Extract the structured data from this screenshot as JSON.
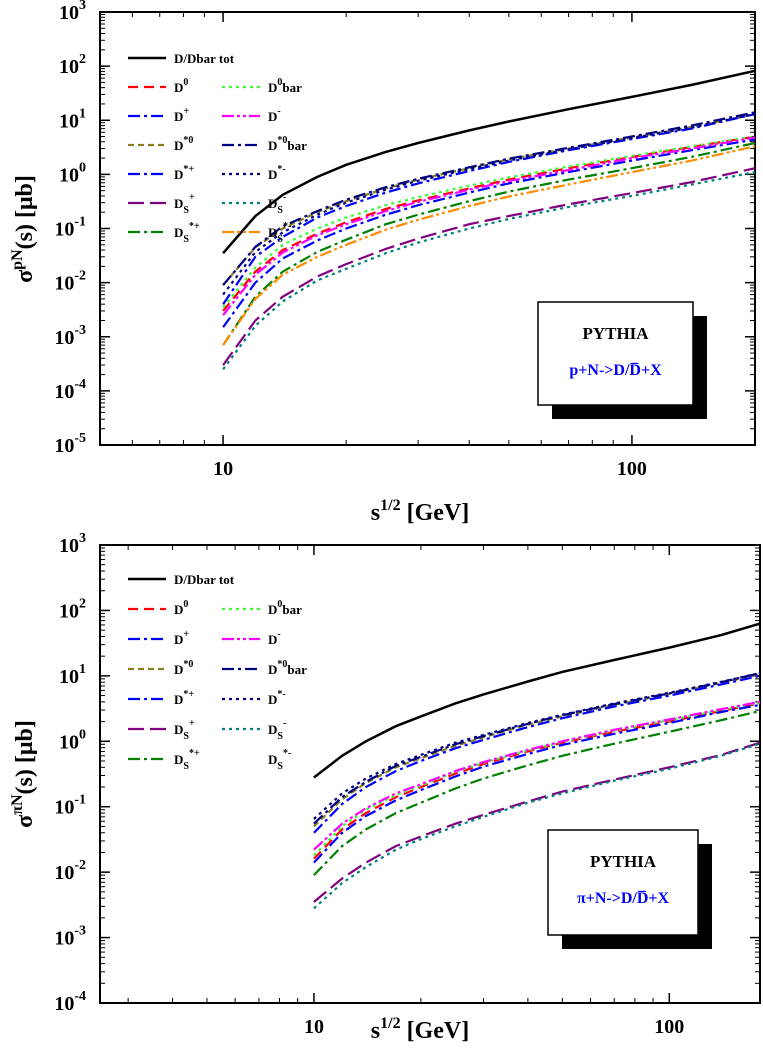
{
  "colors": {
    "black": "#000000",
    "red": "#ff0000",
    "green": "#33ff33",
    "blue": "#0000ff",
    "magenta": "#ff00ff",
    "olive": "#8b7d22",
    "navy": "#000080",
    "purple": "#800080",
    "teal": "#008080",
    "darkgreen": "#008000",
    "orange": "#ff8c00"
  },
  "chart_data": [
    {
      "type": "line",
      "title": "",
      "xlabel_base": "s",
      "xlabel_sup": "1/2",
      "xlabel_unit": " [GeV]",
      "ylabel_base": "σ",
      "ylabel_sup": "pN",
      "ylabel_unit": "(s) [μb]",
      "xscale": "log",
      "yscale": "log",
      "xlim": [
        5,
        200
      ],
      "ylim": [
        1e-05,
        1000
      ],
      "xticks": [
        {
          "v": 10,
          "t": "10"
        },
        {
          "v": 100,
          "t": "100"
        }
      ],
      "yticks": [
        {
          "v": 1e-05,
          "b": "10",
          "e": "-5"
        },
        {
          "v": 0.0001,
          "b": "10",
          "e": "-4"
        },
        {
          "v": 0.001,
          "b": "10",
          "e": "-3"
        },
        {
          "v": 0.01,
          "b": "10",
          "e": "-2"
        },
        {
          "v": 0.1,
          "b": "10",
          "e": "-1"
        },
        {
          "v": 1,
          "b": "10",
          "e": "0"
        },
        {
          "v": 10,
          "b": "10",
          "e": "1"
        },
        {
          "v": 100,
          "b": "10",
          "e": "2"
        },
        {
          "v": 1000,
          "b": "10",
          "e": "3"
        }
      ],
      "annotation": {
        "title": "PYTHIA",
        "process": "p+N->D/D̅+X"
      },
      "legend": [
        [
          {
            "name": "D/Dbar tot",
            "sub": "",
            "sup": "",
            "suffix": "",
            "key": "tot"
          }
        ],
        [
          {
            "name": "D",
            "sub": "",
            "sup": "0",
            "suffix": "",
            "key": "D0"
          },
          {
            "name": "D",
            "sub": "",
            "sup": "0",
            "suffix": "bar",
            "key": "D0bar"
          }
        ],
        [
          {
            "name": "D",
            "sub": "",
            "sup": "+",
            "suffix": "",
            "key": "Dp"
          },
          {
            "name": "D",
            "sub": "",
            "sup": "-",
            "suffix": "",
            "key": "Dm"
          }
        ],
        [
          {
            "name": "D",
            "sub": "",
            "sup": "*0",
            "suffix": "",
            "key": "Ds0"
          },
          {
            "name": "D",
            "sub": "",
            "sup": "*0",
            "suffix": "bar",
            "key": "Ds0bar"
          }
        ],
        [
          {
            "name": "D",
            "sub": "",
            "sup": "*+",
            "suffix": "",
            "key": "Dsp"
          },
          {
            "name": "D",
            "sub": "",
            "sup": "*-",
            "suffix": "",
            "key": "Dsm"
          }
        ],
        [
          {
            "name": "D",
            "sub": "S",
            "sup": "+",
            "suffix": "",
            "key": "DSp"
          },
          {
            "name": "D",
            "sub": "S",
            "sup": "-",
            "suffix": "",
            "key": "DSm"
          }
        ],
        [
          {
            "name": "D",
            "sub": "S",
            "sup": "*+",
            "suffix": "",
            "key": "DSsp"
          },
          {
            "name": "D",
            "sub": "S",
            "sup": "*-",
            "suffix": "",
            "key": "DSsm"
          }
        ]
      ],
      "x": [
        10,
        12,
        14,
        17,
        20,
        25,
        30,
        40,
        50,
        70,
        100,
        140,
        200
      ],
      "series": [
        {
          "key": "tot",
          "name": "D/Dbar tot",
          "color": "#000000",
          "dash": "solid",
          "values": [
            0.035,
            0.17,
            0.42,
            0.9,
            1.5,
            2.6,
            3.8,
            6.5,
            9.5,
            16,
            27,
            45,
            82
          ]
        },
        {
          "key": "D0",
          "name": "D0",
          "color": "#ff0000",
          "dash": "dash",
          "values": [
            0.003,
            0.016,
            0.04,
            0.08,
            0.13,
            0.23,
            0.33,
            0.55,
            0.8,
            1.3,
            2.1,
            3.2,
            5.0
          ]
        },
        {
          "key": "D0bar",
          "name": "D0bar",
          "color": "#33ff33",
          "dash": "dot",
          "values": [
            0.0035,
            0.019,
            0.05,
            0.1,
            0.16,
            0.27,
            0.38,
            0.62,
            0.88,
            1.4,
            2.2,
            3.3,
            5.0
          ]
        },
        {
          "key": "Dp",
          "name": "D+",
          "color": "#0000ff",
          "dash": "dashdot",
          "values": [
            0.0015,
            0.01,
            0.028,
            0.06,
            0.1,
            0.18,
            0.27,
            0.46,
            0.68,
            1.1,
            1.8,
            2.8,
            4.4
          ]
        },
        {
          "key": "Dm",
          "name": "D-",
          "color": "#ff00ff",
          "dash": "dashdotdot",
          "values": [
            0.0025,
            0.014,
            0.036,
            0.075,
            0.12,
            0.21,
            0.31,
            0.52,
            0.75,
            1.2,
            2.0,
            3.0,
            4.8
          ]
        },
        {
          "key": "Ds0",
          "name": "D*0",
          "color": "#8b7d22",
          "dash": "shortdash",
          "values": [
            0.009,
            0.045,
            0.1,
            0.2,
            0.32,
            0.55,
            0.8,
            1.3,
            1.9,
            3.0,
            4.8,
            7.5,
            13
          ]
        },
        {
          "key": "Ds0bar",
          "name": "D*0bar",
          "color": "#000080",
          "dash": "dashdot",
          "values": [
            0.009,
            0.046,
            0.11,
            0.21,
            0.34,
            0.58,
            0.83,
            1.35,
            1.95,
            3.1,
            5.0,
            8.0,
            14
          ]
        },
        {
          "key": "Dsp",
          "name": "D*+",
          "color": "#0000ff",
          "dash": "dashdot",
          "values": [
            0.004,
            0.03,
            0.07,
            0.16,
            0.26,
            0.46,
            0.68,
            1.15,
            1.7,
            2.8,
            4.5,
            7.0,
            13
          ]
        },
        {
          "key": "Dsm",
          "name": "D*-",
          "color": "#000080",
          "dash": "dot",
          "values": [
            0.006,
            0.037,
            0.085,
            0.18,
            0.3,
            0.52,
            0.76,
            1.25,
            1.8,
            2.9,
            4.7,
            7.3,
            13
          ]
        },
        {
          "key": "DSp",
          "name": "DS+",
          "color": "#800080",
          "dash": "longdash",
          "values": [
            0.0003,
            0.002,
            0.0055,
            0.013,
            0.022,
            0.042,
            0.065,
            0.12,
            0.17,
            0.28,
            0.45,
            0.72,
            1.3
          ]
        },
        {
          "key": "DSm",
          "name": "DS-",
          "color": "#008080",
          "dash": "dot",
          "values": [
            0.00025,
            0.0016,
            0.0045,
            0.011,
            0.018,
            0.035,
            0.055,
            0.1,
            0.15,
            0.25,
            0.4,
            0.65,
            1.1
          ]
        },
        {
          "key": "DSsp",
          "name": "DS*+",
          "color": "#008000",
          "dash": "dashdot",
          "values": [
            0.0007,
            0.0055,
            0.016,
            0.037,
            0.062,
            0.12,
            0.18,
            0.32,
            0.48,
            0.8,
            1.3,
            2.1,
            3.8
          ]
        },
        {
          "key": "DSsm",
          "name": "DS*-",
          "color": "#ff8c00",
          "dash": "dashdotdot",
          "values": [
            0.0007,
            0.005,
            0.014,
            0.03,
            0.05,
            0.095,
            0.145,
            0.26,
            0.39,
            0.65,
            1.1,
            1.8,
            3.3
          ]
        }
      ]
    },
    {
      "type": "line",
      "title": "",
      "xlabel_base": "s",
      "xlabel_sup": "1/2",
      "xlabel_unit": " [GeV]",
      "ylabel_base": "σ",
      "ylabel_sup": "πN",
      "ylabel_unit": "(s) [μb]",
      "xscale": "log",
      "yscale": "log",
      "xlim": [
        2.5,
        180
      ],
      "ylim": [
        0.0001,
        1000
      ],
      "xticks": [
        {
          "v": 10,
          "t": "10"
        },
        {
          "v": 100,
          "t": "100"
        }
      ],
      "yticks": [
        {
          "v": 0.0001,
          "b": "10",
          "e": "-4"
        },
        {
          "v": 0.001,
          "b": "10",
          "e": "-3"
        },
        {
          "v": 0.01,
          "b": "10",
          "e": "-2"
        },
        {
          "v": 0.1,
          "b": "10",
          "e": "-1"
        },
        {
          "v": 1,
          "b": "10",
          "e": "0"
        },
        {
          "v": 10,
          "b": "10",
          "e": "1"
        },
        {
          "v": 100,
          "b": "10",
          "e": "2"
        },
        {
          "v": 1000,
          "b": "10",
          "e": "3"
        }
      ],
      "annotation": {
        "title": "PYTHIA",
        "process": "π+N->D/D̅+X"
      },
      "legend": [
        [
          {
            "name": "D/Dbar tot",
            "sub": "",
            "sup": "",
            "suffix": "",
            "key": "tot"
          }
        ],
        [
          {
            "name": "D",
            "sub": "",
            "sup": "0",
            "suffix": "",
            "key": "D0"
          },
          {
            "name": "D",
            "sub": "",
            "sup": "0",
            "suffix": "bar",
            "key": "D0bar"
          }
        ],
        [
          {
            "name": "D",
            "sub": "",
            "sup": "+",
            "suffix": "",
            "key": "Dp"
          },
          {
            "name": "D",
            "sub": "",
            "sup": "-",
            "suffix": "",
            "key": "Dm"
          }
        ],
        [
          {
            "name": "D",
            "sub": "",
            "sup": "*0",
            "suffix": "",
            "key": "Ds0"
          },
          {
            "name": "D",
            "sub": "",
            "sup": "*0",
            "suffix": "bar",
            "key": "Ds0bar"
          }
        ],
        [
          {
            "name": "D",
            "sub": "",
            "sup": "*+",
            "suffix": "",
            "key": "Dsp"
          },
          {
            "name": "D",
            "sub": "",
            "sup": "*-",
            "suffix": "",
            "key": "Dsm"
          }
        ],
        [
          {
            "name": "D",
            "sub": "S",
            "sup": "+",
            "suffix": "",
            "key": "DSp"
          },
          {
            "name": "D",
            "sub": "S",
            "sup": "-",
            "suffix": "",
            "key": "DSm"
          }
        ],
        [
          {
            "name": "D",
            "sub": "S",
            "sup": "*+",
            "suffix": "",
            "key": "DSsp"
          },
          {
            "name": "D",
            "sub": "S",
            "sup": "*-",
            "suffix": "",
            "key": "DSsm"
          }
        ]
      ],
      "x": [
        10,
        12,
        14,
        17,
        20,
        25,
        30,
        40,
        50,
        70,
        100,
        140,
        180
      ],
      "series": [
        {
          "key": "tot",
          "name": "D/Dbar tot",
          "color": "#000000",
          "dash": "solid",
          "values": [
            0.28,
            0.6,
            1.0,
            1.7,
            2.4,
            3.8,
            5.2,
            8.2,
            11.5,
            17.5,
            27,
            42,
            63
          ]
        },
        {
          "key": "D0",
          "name": "D0",
          "color": "#ff0000",
          "dash": "dash",
          "values": [
            0.016,
            0.045,
            0.08,
            0.14,
            0.2,
            0.32,
            0.45,
            0.7,
            0.95,
            1.4,
            2.0,
            2.9,
            3.8
          ]
        },
        {
          "key": "D0bar",
          "name": "D0bar",
          "color": "#33ff33",
          "dash": "dot",
          "values": [
            0.018,
            0.05,
            0.09,
            0.15,
            0.21,
            0.34,
            0.47,
            0.72,
            0.98,
            1.45,
            2.1,
            3.0,
            3.9
          ]
        },
        {
          "key": "Dp",
          "name": "D+",
          "color": "#0000ff",
          "dash": "dashdot",
          "values": [
            0.014,
            0.04,
            0.072,
            0.125,
            0.18,
            0.29,
            0.41,
            0.64,
            0.88,
            1.3,
            1.9,
            2.8,
            3.6
          ]
        },
        {
          "key": "Dm",
          "name": "D-",
          "color": "#ff00ff",
          "dash": "dashdotdot",
          "values": [
            0.022,
            0.055,
            0.095,
            0.16,
            0.22,
            0.35,
            0.48,
            0.74,
            1.0,
            1.5,
            2.15,
            3.1,
            4.0
          ]
        },
        {
          "key": "Ds0",
          "name": "D*0",
          "color": "#8b7d22",
          "dash": "shortdash",
          "values": [
            0.05,
            0.13,
            0.23,
            0.4,
            0.55,
            0.85,
            1.15,
            1.8,
            2.4,
            3.6,
            5.3,
            7.8,
            10.5
          ]
        },
        {
          "key": "Ds0bar",
          "name": "D*0bar",
          "color": "#000080",
          "dash": "dashdot",
          "values": [
            0.055,
            0.14,
            0.24,
            0.42,
            0.58,
            0.9,
            1.2,
            1.85,
            2.5,
            3.7,
            5.4,
            8.0,
            11
          ]
        },
        {
          "key": "Dsp",
          "name": "D*+",
          "color": "#0000ff",
          "dash": "dashdot",
          "values": [
            0.04,
            0.11,
            0.2,
            0.35,
            0.5,
            0.78,
            1.05,
            1.65,
            2.25,
            3.4,
            5.0,
            7.4,
            10
          ]
        },
        {
          "key": "Dsm",
          "name": "D*-",
          "color": "#000080",
          "dash": "dot",
          "values": [
            0.065,
            0.16,
            0.27,
            0.45,
            0.62,
            0.95,
            1.25,
            1.9,
            2.55,
            3.8,
            5.5,
            8.1,
            11
          ]
        },
        {
          "key": "DSp",
          "name": "DS+",
          "color": "#800080",
          "dash": "longdash",
          "values": [
            0.0035,
            0.008,
            0.014,
            0.025,
            0.035,
            0.055,
            0.075,
            0.12,
            0.17,
            0.26,
            0.4,
            0.62,
            0.95
          ]
        },
        {
          "key": "DSm",
          "name": "DS-",
          "color": "#008080",
          "dash": "dot",
          "values": [
            0.0028,
            0.0068,
            0.012,
            0.022,
            0.032,
            0.05,
            0.07,
            0.115,
            0.16,
            0.25,
            0.38,
            0.6,
            0.92
          ]
        },
        {
          "key": "DSsp",
          "name": "DS*+",
          "color": "#008000",
          "dash": "dashdot",
          "values": [
            0.009,
            0.025,
            0.045,
            0.08,
            0.115,
            0.19,
            0.27,
            0.43,
            0.6,
            0.92,
            1.4,
            2.1,
            2.9
          ]
        },
        {
          "key": "DSsm",
          "name": "DS*-",
          "color": "#ff8c00",
          "dash": "dashdotdot",
          "values": [
            null,
            null,
            null,
            null,
            null,
            null,
            null,
            null,
            null,
            null,
            null,
            null,
            null
          ]
        }
      ]
    }
  ]
}
